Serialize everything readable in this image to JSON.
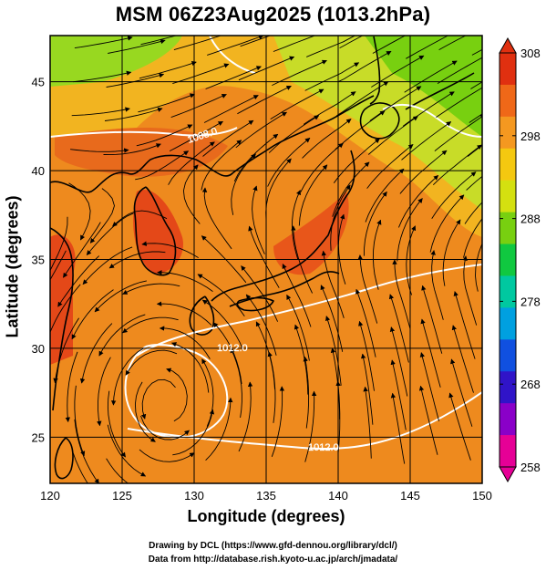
{
  "title": "MSM 06Z23Aug2025 (1013.2hPa)",
  "x_axis": {
    "label": "Longitude (degrees)",
    "ticks": [
      "120",
      "125",
      "130",
      "135",
      "140",
      "145",
      "150"
    ],
    "min": 120,
    "max": 150
  },
  "y_axis": {
    "label": "Latitude  (degrees)",
    "ticks": [
      "25",
      "30",
      "35",
      "40",
      "45"
    ],
    "min": 22.4,
    "max": 47.6
  },
  "colorbar": {
    "ticks": [
      "308",
      "298",
      "288",
      "278",
      "268",
      "258"
    ],
    "min": 258,
    "max": 308,
    "colors": [
      "#e60096",
      "#8a00c8",
      "#3014c8",
      "#1050e0",
      "#00a0e0",
      "#00c8a0",
      "#10c840",
      "#78d010",
      "#d4e010",
      "#f4c810",
      "#f49820",
      "#ef6818",
      "#e03010"
    ]
  },
  "isobar_labels": [
    "1008.0",
    "1012.0",
    "1012.0"
  ],
  "credits": {
    "line1": "Drawing by DCL (https://www.gfd-dennou.org/library/dcl/)",
    "line2": "Data from http://database.rish.kyoto-u.ac.jp/arch/jmadata/"
  },
  "colors": {
    "land": "#000000",
    "isobar": "#ffffff",
    "warm": "#ef7a1e",
    "hot": "#e8401a",
    "mild": "#f0b020",
    "cool": "#a8d830"
  }
}
